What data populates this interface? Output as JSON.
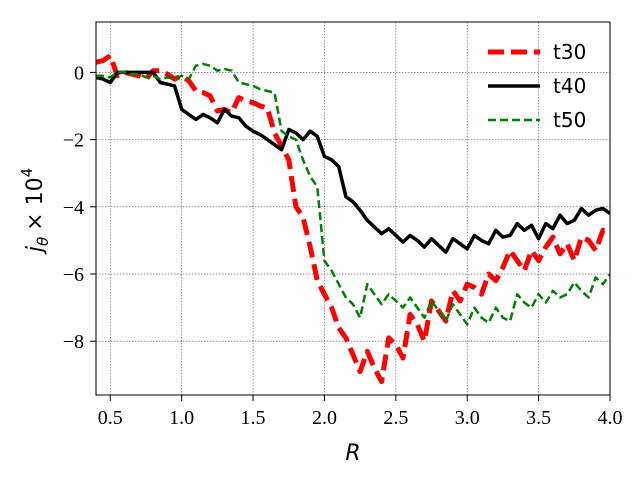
{
  "chart_data": {
    "type": "line",
    "xlabel": "R",
    "ylabel_main": "j",
    "ylabel_sub": "θ",
    "ylabel_factor": "× 10",
    "ylabel_exp": "4",
    "xlim": [
      0.4,
      4.0
    ],
    "ylim": [
      -9.6,
      1.5
    ],
    "xticks": [
      0.5,
      1.0,
      1.5,
      2.0,
      2.5,
      3.0,
      3.5,
      4.0
    ],
    "xtick_labels": [
      "0.5",
      "1.0",
      "1.5",
      "2.0",
      "2.5",
      "3.0",
      "3.5",
      "4.0"
    ],
    "yticks": [
      0,
      -2,
      -4,
      -6,
      -8
    ],
    "ytick_labels": [
      "0",
      "−2",
      "−4",
      "−6",
      "−8"
    ],
    "grid": true,
    "legend_position": "top-right",
    "series": [
      {
        "name": "t30",
        "color": "#ff0000",
        "style": "dashed-thick",
        "x": [
          0.4,
          0.45,
          0.5,
          0.55,
          0.6,
          0.65,
          0.7,
          0.75,
          0.8,
          0.85,
          0.9,
          0.95,
          1.0,
          1.05,
          1.1,
          1.15,
          1.2,
          1.25,
          1.3,
          1.35,
          1.4,
          1.45,
          1.5,
          1.55,
          1.6,
          1.65,
          1.7,
          1.75,
          1.8,
          1.85,
          1.9,
          1.95,
          2.0,
          2.05,
          2.1,
          2.15,
          2.2,
          2.25,
          2.3,
          2.35,
          2.4,
          2.45,
          2.5,
          2.55,
          2.6,
          2.65,
          2.7,
          2.75,
          2.8,
          2.85,
          2.9,
          2.95,
          3.0,
          3.05,
          3.1,
          3.15,
          3.2,
          3.25,
          3.3,
          3.35,
          3.4,
          3.45,
          3.5,
          3.55,
          3.6,
          3.65,
          3.7,
          3.75,
          3.8,
          3.85,
          3.9,
          3.95,
          4.0
        ],
        "y": [
          0.3,
          0.35,
          0.5,
          -0.1,
          0.0,
          -0.05,
          -0.1,
          -0.2,
          0.05,
          0.05,
          -0.05,
          -0.2,
          -0.1,
          -0.25,
          -0.55,
          -0.6,
          -0.7,
          -1.15,
          -1.1,
          -1.2,
          -0.75,
          -0.85,
          -0.9,
          -1.0,
          -1.05,
          -1.8,
          -2.2,
          -2.6,
          -4.0,
          -4.3,
          -5.2,
          -6.2,
          -6.6,
          -7.0,
          -7.6,
          -7.9,
          -8.4,
          -8.9,
          -8.3,
          -8.8,
          -9.2,
          -7.9,
          -8.1,
          -8.5,
          -7.2,
          -7.5,
          -8.0,
          -6.8,
          -7.1,
          -7.4,
          -6.5,
          -6.8,
          -6.3,
          -6.4,
          -6.6,
          -6.0,
          -6.2,
          -5.8,
          -5.3,
          -5.6,
          -5.9,
          -5.3,
          -5.6,
          -5.2,
          -4.9,
          -5.4,
          -5.1,
          -5.6,
          -4.9,
          -5.0,
          -5.3,
          -4.7,
          -4.8
        ]
      },
      {
        "name": "t40",
        "color": "#000000",
        "style": "solid",
        "x": [
          0.4,
          0.45,
          0.5,
          0.55,
          0.6,
          0.65,
          0.7,
          0.75,
          0.8,
          0.85,
          0.9,
          0.95,
          1.0,
          1.05,
          1.1,
          1.15,
          1.2,
          1.25,
          1.3,
          1.35,
          1.4,
          1.45,
          1.5,
          1.55,
          1.6,
          1.65,
          1.7,
          1.75,
          1.8,
          1.85,
          1.9,
          1.95,
          2.0,
          2.05,
          2.1,
          2.15,
          2.2,
          2.25,
          2.3,
          2.35,
          2.4,
          2.45,
          2.5,
          2.55,
          2.6,
          2.65,
          2.7,
          2.75,
          2.8,
          2.85,
          2.9,
          2.95,
          3.0,
          3.05,
          3.1,
          3.15,
          3.2,
          3.25,
          3.3,
          3.35,
          3.4,
          3.45,
          3.5,
          3.55,
          3.6,
          3.65,
          3.7,
          3.75,
          3.8,
          3.85,
          3.9,
          3.95,
          4.0
        ],
        "y": [
          -0.15,
          -0.2,
          -0.3,
          0.0,
          0.0,
          0.0,
          0.0,
          0.0,
          0.0,
          -0.3,
          -0.35,
          -0.4,
          -1.1,
          -1.25,
          -1.4,
          -1.25,
          -1.35,
          -1.5,
          -1.1,
          -1.3,
          -1.35,
          -1.6,
          -1.75,
          -1.85,
          -2.0,
          -2.15,
          -2.3,
          -1.7,
          -1.8,
          -2.0,
          -1.75,
          -1.9,
          -2.5,
          -2.6,
          -2.8,
          -3.7,
          -3.85,
          -4.1,
          -4.4,
          -4.6,
          -4.8,
          -4.65,
          -4.85,
          -5.05,
          -4.85,
          -5.0,
          -5.2,
          -4.95,
          -5.15,
          -5.35,
          -4.95,
          -5.1,
          -5.25,
          -4.85,
          -5.0,
          -5.1,
          -4.7,
          -4.9,
          -4.85,
          -4.5,
          -4.7,
          -4.55,
          -4.95,
          -4.5,
          -4.65,
          -4.25,
          -4.5,
          -4.4,
          -4.05,
          -4.25,
          -4.1,
          -4.05,
          -4.2
        ]
      },
      {
        "name": "t50",
        "color": "#008000",
        "style": "dashed-thin",
        "x": [
          0.4,
          0.45,
          0.5,
          0.55,
          0.6,
          0.65,
          0.7,
          0.75,
          0.8,
          0.85,
          0.9,
          0.95,
          1.0,
          1.05,
          1.1,
          1.15,
          1.2,
          1.25,
          1.3,
          1.35,
          1.4,
          1.45,
          1.5,
          1.55,
          1.6,
          1.65,
          1.7,
          1.75,
          1.8,
          1.85,
          1.9,
          1.95,
          2.0,
          2.05,
          2.1,
          2.15,
          2.2,
          2.25,
          2.3,
          2.35,
          2.4,
          2.45,
          2.5,
          2.55,
          2.6,
          2.65,
          2.7,
          2.75,
          2.8,
          2.85,
          2.9,
          2.95,
          3.0,
          3.05,
          3.1,
          3.15,
          3.2,
          3.25,
          3.3,
          3.35,
          3.4,
          3.45,
          3.5,
          3.55,
          3.6,
          3.65,
          3.7,
          3.75,
          3.8,
          3.85,
          3.9,
          3.95,
          4.0
        ],
        "y": [
          -0.1,
          -0.1,
          -0.15,
          0.0,
          0.0,
          -0.05,
          -0.05,
          -0.15,
          -0.1,
          -0.2,
          -0.15,
          -0.2,
          -0.1,
          -0.2,
          0.2,
          0.25,
          0.2,
          0.05,
          0.1,
          0.05,
          -0.3,
          -0.35,
          -0.4,
          -0.5,
          -0.55,
          -0.6,
          -1.75,
          -1.9,
          -2.0,
          -2.6,
          -3.1,
          -3.4,
          -5.6,
          -5.9,
          -6.3,
          -6.7,
          -6.9,
          -7.3,
          -6.3,
          -6.6,
          -6.9,
          -6.6,
          -6.8,
          -7.0,
          -6.7,
          -7.0,
          -7.3,
          -6.8,
          -7.1,
          -7.4,
          -6.9,
          -7.2,
          -7.5,
          -7.0,
          -7.3,
          -7.45,
          -7.0,
          -7.3,
          -7.4,
          -6.6,
          -6.85,
          -7.0,
          -6.6,
          -6.85,
          -6.5,
          -6.7,
          -6.6,
          -6.25,
          -6.5,
          -6.7,
          -6.1,
          -6.3,
          -6.0
        ]
      }
    ]
  }
}
